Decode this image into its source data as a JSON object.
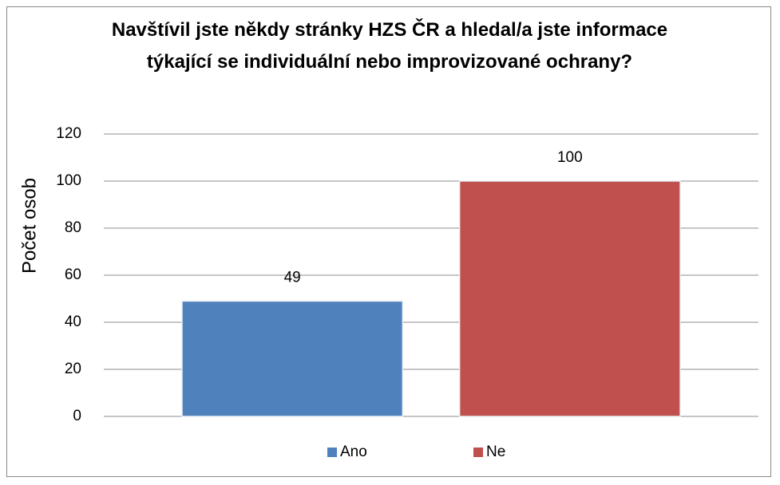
{
  "chart_data": {
    "type": "bar",
    "title": "Navštívil jste někdy stránky HZS ČR a hledal/a jste informace týkající se individuální nebo improvizované ochrany?",
    "y_label": "Počet osob",
    "categories": [
      null
    ],
    "series": [
      {
        "name": "Ano",
        "color": "#4f81bd",
        "values": [
          49
        ]
      },
      {
        "name": "Ne",
        "color": "#c0504d",
        "values": [
          100
        ]
      }
    ],
    "ylim": [
      0,
      120
    ],
    "yticks": [
      0,
      20,
      40,
      60,
      80,
      100,
      120
    ],
    "grid": true,
    "legend": "bottom",
    "data_labels": true
  }
}
